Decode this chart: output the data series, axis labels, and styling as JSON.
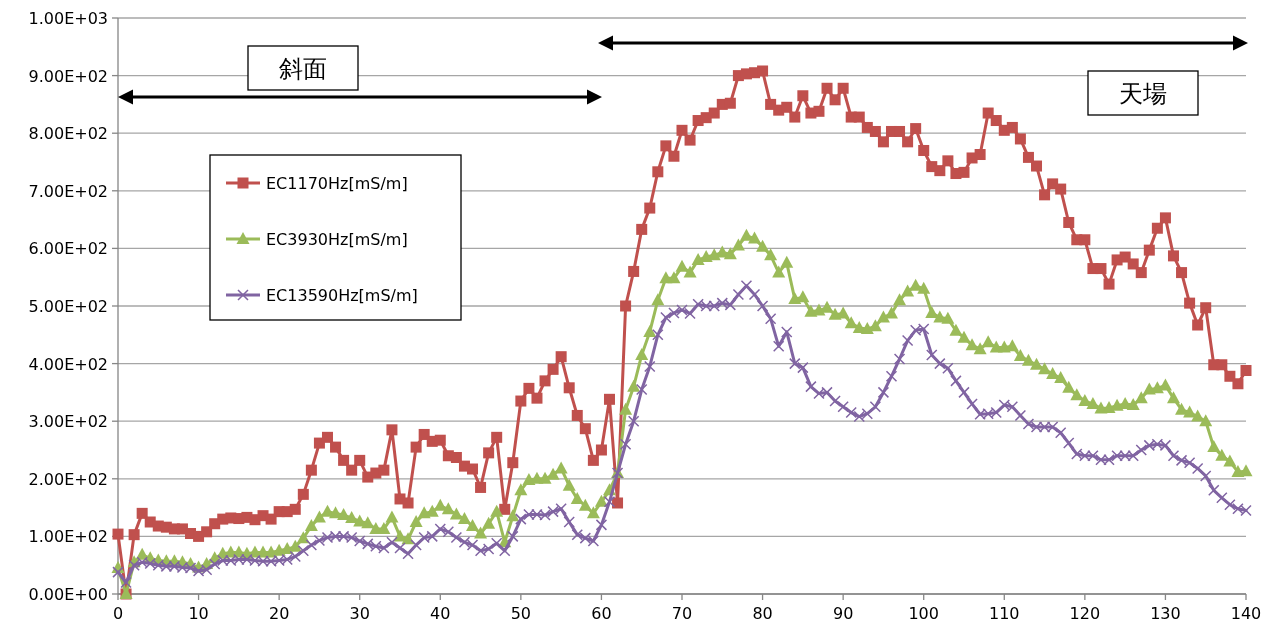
{
  "chart_data": {
    "type": "line",
    "x": [
      0,
      1,
      2,
      3,
      4,
      5,
      6,
      7,
      8,
      9,
      10,
      11,
      12,
      13,
      14,
      15,
      16,
      17,
      18,
      19,
      20,
      21,
      22,
      23,
      24,
      25,
      26,
      27,
      28,
      29,
      30,
      31,
      32,
      33,
      34,
      35,
      36,
      37,
      38,
      39,
      40,
      41,
      42,
      43,
      44,
      45,
      46,
      47,
      48,
      49,
      50,
      51,
      52,
      53,
      54,
      55,
      56,
      57,
      58,
      59,
      60,
      61,
      62,
      63,
      64,
      65,
      66,
      67,
      68,
      69,
      70,
      71,
      72,
      73,
      74,
      75,
      76,
      77,
      78,
      79,
      80,
      81,
      82,
      83,
      84,
      85,
      86,
      87,
      88,
      89,
      90,
      91,
      92,
      93,
      94,
      95,
      96,
      97,
      98,
      99,
      100,
      101,
      102,
      103,
      104,
      105,
      106,
      107,
      108,
      109,
      110,
      111,
      112,
      113,
      114,
      115,
      116,
      117,
      118,
      119,
      120,
      121,
      122,
      123,
      124,
      125,
      126,
      127,
      128,
      129,
      130,
      131,
      132,
      133,
      134,
      135,
      136,
      137,
      138,
      139,
      140
    ],
    "series": [
      {
        "name": "EC1170Hz[mS/m]",
        "color": "#c0504d",
        "marker": "square",
        "values": [
          104,
          0,
          103,
          140,
          125,
          118,
          116,
          113,
          113,
          105,
          100,
          108,
          122,
          130,
          132,
          131,
          133,
          129,
          136,
          130,
          143,
          143,
          147,
          173,
          215,
          262,
          272,
          255,
          232,
          215,
          232,
          203,
          210,
          215,
          285,
          165,
          158,
          255,
          277,
          265,
          267,
          240,
          237,
          222,
          217,
          185,
          245,
          272,
          147,
          228,
          335,
          357,
          340,
          370,
          390,
          412,
          358,
          310,
          287,
          232,
          250,
          338,
          158,
          500,
          560,
          633,
          670,
          733,
          778,
          760,
          805,
          788,
          822,
          827,
          835,
          850,
          852,
          900,
          903,
          905,
          908,
          850,
          840,
          845,
          828,
          865,
          835,
          838,
          878,
          858,
          878,
          828,
          828,
          810,
          803,
          785,
          803,
          803,
          785,
          808,
          770,
          742,
          735,
          752,
          730,
          732,
          757,
          763,
          835,
          822,
          805,
          810,
          790,
          758,
          743,
          693,
          712,
          703,
          645,
          615,
          615,
          565,
          565,
          538,
          580,
          585,
          573,
          558,
          597,
          635,
          653,
          587,
          558,
          505,
          467,
          497,
          398,
          398,
          378,
          365,
          388
        ]
      },
      {
        "name": "EC3930Hz[mS/m]",
        "color": "#9bbb59",
        "marker": "triangle",
        "values": [
          45,
          0,
          55,
          68,
          62,
          58,
          57,
          57,
          55,
          52,
          46,
          52,
          62,
          70,
          72,
          72,
          70,
          72,
          72,
          72,
          75,
          78,
          82,
          97,
          118,
          133,
          143,
          140,
          137,
          132,
          126,
          123,
          113,
          113,
          133,
          100,
          95,
          125,
          140,
          143,
          153,
          147,
          138,
          130,
          118,
          105,
          122,
          143,
          90,
          135,
          180,
          198,
          200,
          200,
          207,
          218,
          188,
          165,
          153,
          140,
          160,
          180,
          210,
          320,
          360,
          415,
          455,
          510,
          548,
          548,
          568,
          558,
          580,
          585,
          588,
          593,
          590,
          605,
          622,
          617,
          603,
          588,
          558,
          575,
          512,
          515,
          490,
          492,
          497,
          485,
          487,
          470,
          462,
          460,
          465,
          480,
          487,
          510,
          525,
          535,
          530,
          488,
          480,
          478,
          457,
          445,
          432,
          425,
          437,
          428,
          428,
          430,
          413,
          405,
          398,
          390,
          382,
          375,
          358,
          345,
          335,
          330,
          322,
          323,
          327,
          330,
          328,
          340,
          355,
          357,
          362,
          340,
          320,
          315,
          308,
          300,
          255,
          240,
          230,
          212,
          213
        ]
      },
      {
        "name": "EC13590Hz[mS/m]",
        "color": "#8064a2",
        "marker": "cross",
        "values": [
          38,
          20,
          50,
          55,
          53,
          50,
          48,
          48,
          46,
          45,
          40,
          42,
          52,
          58,
          58,
          60,
          60,
          58,
          57,
          57,
          58,
          60,
          65,
          75,
          85,
          93,
          98,
          100,
          100,
          98,
          92,
          87,
          83,
          80,
          90,
          80,
          70,
          85,
          98,
          100,
          113,
          108,
          98,
          90,
          85,
          75,
          78,
          88,
          75,
          100,
          130,
          138,
          138,
          137,
          143,
          148,
          125,
          103,
          97,
          92,
          120,
          160,
          210,
          260,
          300,
          355,
          395,
          450,
          480,
          488,
          493,
          487,
          503,
          500,
          500,
          505,
          502,
          520,
          535,
          520,
          500,
          478,
          430,
          455,
          400,
          393,
          360,
          348,
          350,
          335,
          325,
          315,
          308,
          313,
          325,
          350,
          378,
          408,
          440,
          458,
          460,
          415,
          400,
          392,
          370,
          350,
          330,
          312,
          313,
          315,
          328,
          325,
          310,
          295,
          290,
          290,
          290,
          280,
          262,
          243,
          240,
          240,
          233,
          233,
          240,
          240,
          240,
          250,
          258,
          260,
          258,
          240,
          232,
          228,
          218,
          205,
          180,
          167,
          155,
          148,
          145
        ]
      }
    ],
    "xlim": [
      0,
      140
    ],
    "xticks": [
      0,
      10,
      20,
      30,
      40,
      50,
      60,
      70,
      80,
      90,
      100,
      110,
      120,
      130,
      140
    ],
    "ylim": [
      0,
      1000
    ],
    "yticks": [
      {
        "value": 0,
        "label": "0.00E+00"
      },
      {
        "value": 100,
        "label": "1.00E+02"
      },
      {
        "value": 200,
        "label": "2.00E+02"
      },
      {
        "value": 300,
        "label": "3.00E+02"
      },
      {
        "value": 400,
        "label": "4.00E+02"
      },
      {
        "value": 500,
        "label": "5.00E+02"
      },
      {
        "value": 600,
        "label": "6.00E+02"
      },
      {
        "value": 700,
        "label": "7.00E+02"
      },
      {
        "value": 800,
        "label": "8.00E+02"
      },
      {
        "value": 900,
        "label": "9.00E+02"
      },
      {
        "value": 1000,
        "label": "1.00E+03"
      }
    ],
    "grid": "y",
    "legend": "left",
    "line_style": "solid",
    "annotations": [
      "斜面",
      "天場"
    ]
  }
}
